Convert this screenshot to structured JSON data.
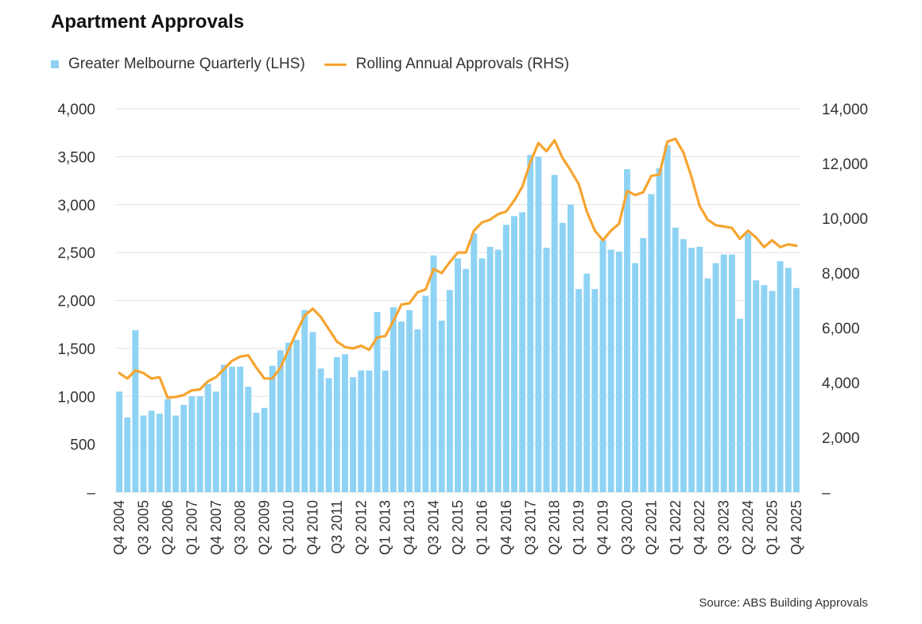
{
  "title": "Apartment Approvals",
  "source": "Source: ABS Building Approvals",
  "colors": {
    "bar": "#8fd3f4",
    "line": "#f6a430",
    "grid": "#e3e3e3",
    "text": "#333333"
  },
  "chart_data": {
    "type": "bar",
    "title": "Apartment Approvals",
    "xlabel": "",
    "ylabel": "",
    "legend_position": "top-left",
    "grid": true,
    "y_left": {
      "range": [
        0,
        4000
      ],
      "ticks": [
        0,
        500,
        1000,
        1500,
        2000,
        2500,
        3000,
        3500,
        4000
      ],
      "tick_labels": [
        "–",
        "500",
        "1,000",
        "1,500",
        "2,000",
        "2,500",
        "3,000",
        "3,500",
        "4,000"
      ]
    },
    "y_right": {
      "range": [
        0,
        14000
      ],
      "ticks": [
        0,
        2000,
        4000,
        6000,
        8000,
        10000,
        12000,
        14000
      ],
      "tick_labels": [
        "–",
        "2,000",
        "4,000",
        "6,000",
        "8,000",
        "10,000",
        "12,000",
        "14,000"
      ]
    },
    "x_tick_labels": [
      "Q4 2004",
      "Q3 2005",
      "Q2 2006",
      "Q1 2007",
      "Q4 2007",
      "Q3 2008",
      "Q2 2009",
      "Q1 2010",
      "Q4 2010",
      "Q3 2011",
      "Q2 2012",
      "Q1 2013",
      "Q4 2013",
      "Q3 2014",
      "Q2 2015",
      "Q1 2016",
      "Q4 2016",
      "Q3 2017",
      "Q2 2018",
      "Q1 2019",
      "Q4 2019",
      "Q3 2020",
      "Q2 2021",
      "Q1 2022",
      "Q4 2022",
      "Q3 2023",
      "Q2 2024",
      "Q1 2025",
      "Q4 2025"
    ],
    "x_tick_every": 3,
    "quarter_count": 85,
    "series": [
      {
        "name": "Greater Melbourne Quarterly (LHS)",
        "type": "bar",
        "axis": "left",
        "values": [
          1050,
          780,
          1690,
          800,
          850,
          820,
          970,
          800,
          910,
          1000,
          1000,
          1130,
          1050,
          1330,
          1310,
          1310,
          1100,
          830,
          880,
          1320,
          1480,
          1560,
          1590,
          1900,
          1670,
          1290,
          1190,
          1410,
          1440,
          1200,
          1270,
          1270,
          1880,
          1270,
          1930,
          1780,
          1900,
          1700,
          2050,
          2470,
          1790,
          2110,
          2440,
          2330,
          2700,
          2440,
          2560,
          2530,
          2790,
          2880,
          2920,
          3520,
          3500,
          2550,
          3310,
          2810,
          3000,
          2120,
          2280,
          2120,
          2630,
          2530,
          2510,
          3370,
          2390,
          2650,
          3110,
          3380,
          3620,
          2760,
          2640,
          2550,
          2560,
          2230,
          2390,
          2480,
          2480,
          1810,
          2700,
          2210,
          2160,
          2100,
          2410,
          2340,
          2130
        ]
      },
      {
        "name": "Rolling Annual Approvals (RHS)",
        "type": "line",
        "axis": "right",
        "values": [
          4350,
          4150,
          4450,
          4350,
          4150,
          4200,
          3450,
          3480,
          3550,
          3720,
          3750,
          4050,
          4200,
          4500,
          4800,
          4950,
          5000,
          4550,
          4150,
          4150,
          4550,
          5200,
          5850,
          6450,
          6700,
          6400,
          5950,
          5500,
          5300,
          5250,
          5350,
          5200,
          5650,
          5700,
          6250,
          6850,
          6900,
          7300,
          7400,
          8150,
          8000,
          8400,
          8750,
          8750,
          9550,
          9850,
          9950,
          10150,
          10250,
          10650,
          11150,
          12050,
          12750,
          12450,
          12850,
          12200,
          11750,
          11250,
          10250,
          9550,
          9200,
          9550,
          9800,
          11000,
          10850,
          10950,
          11550,
          11600,
          12800,
          12900,
          12400,
          11500,
          10450,
          9950,
          9750,
          9700,
          9650,
          9250,
          9550,
          9300,
          8950,
          9200,
          8950,
          9050,
          9000
        ]
      }
    ]
  }
}
